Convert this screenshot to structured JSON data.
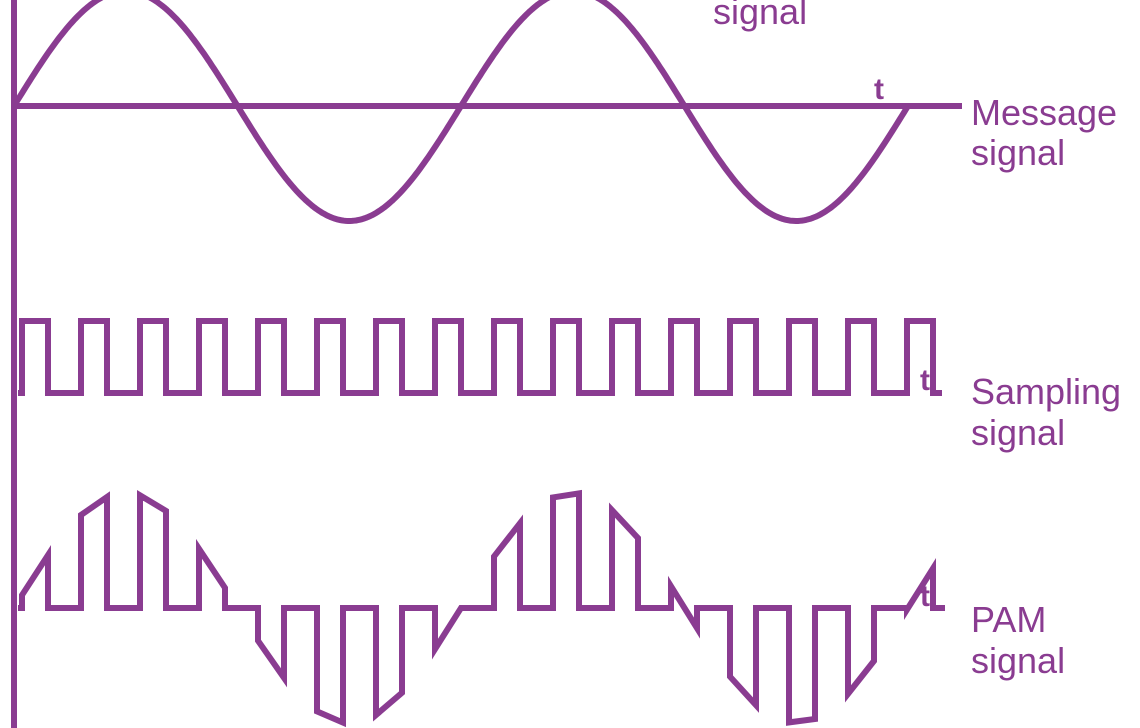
{
  "colors": {
    "waveform": "#8a3c91",
    "background": "#ffffff"
  },
  "labels": {
    "top_partial": "signal",
    "time_axis": "t",
    "message": [
      "Message",
      "signal"
    ],
    "sampling": [
      "Sampling",
      "signal"
    ],
    "pam": [
      "PAM",
      "signal"
    ]
  },
  "waveforms": {
    "message": {
      "shape": "sine",
      "cycles": 2
    },
    "sampling": {
      "shape": "pulse-train",
      "pulse_count": 16
    },
    "pam": {
      "shape": "flat-top pulse amplitude modulation of the message signal",
      "pulse_count": 16
    }
  }
}
